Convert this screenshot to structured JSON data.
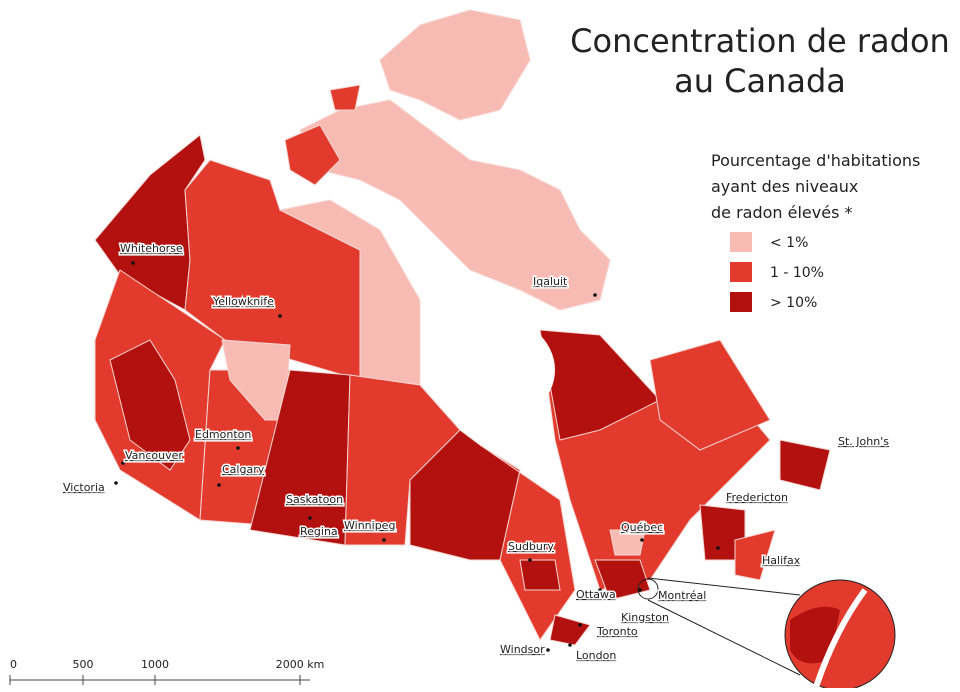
{
  "title": [
    "Concentration de radon",
    "au Canada"
  ],
  "legend": {
    "title": [
      "Pourcentage d'habitations",
      "ayant des niveaux",
      "de radon élevés *"
    ],
    "items": [
      {
        "label": "< 1%",
        "color": "#f8bbb3"
      },
      {
        "label": "1 - 10%",
        "color": "#e23b2e"
      },
      {
        "label": "> 10%",
        "color": "#b3110f"
      }
    ]
  },
  "cities": [
    "Whitehorse",
    "Yellowknife",
    "Iqaluit",
    "Edmonton",
    "Vancouver",
    "Calgary",
    "Victoria",
    "Saskatoon",
    "Regina",
    "Winnipeg",
    "Québec",
    "Fredericton",
    "St. John's",
    "Halifax",
    "Sudbury",
    "Ottawa",
    "Montréal",
    "Kingston",
    "Toronto",
    "Windsor",
    "London"
  ],
  "scale_bar": [
    "0",
    "500",
    "1000",
    "2000 km"
  ]
}
